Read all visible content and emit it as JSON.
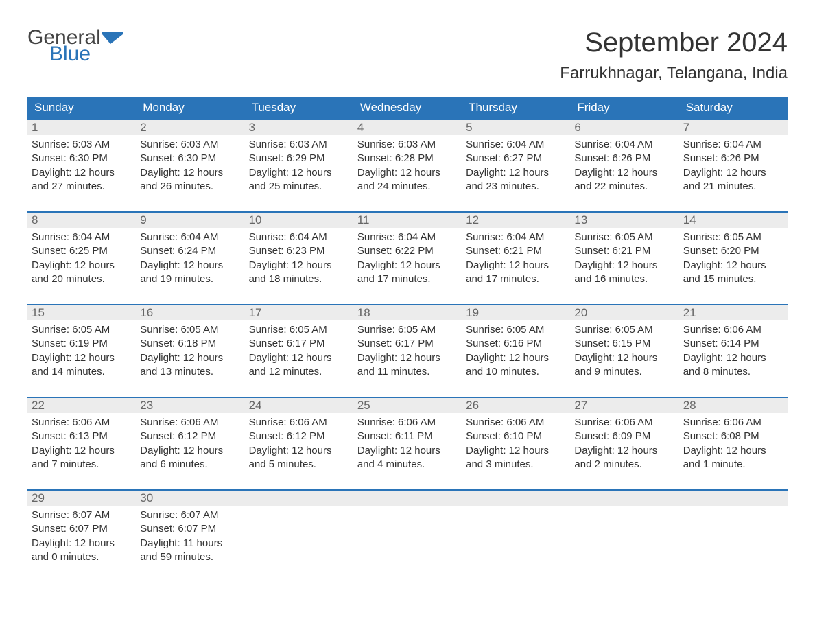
{
  "logo": {
    "top": "General",
    "bottom": "Blue"
  },
  "title": "September 2024",
  "location": "Farrukhnagar, Telangana, India",
  "colors": {
    "header_bg": "#2a74b8",
    "header_text": "#ffffff",
    "daynum_bg": "#ececec",
    "daynum_text": "#666666",
    "accent_border": "#2a74b8",
    "body_text": "#333333",
    "background": "#ffffff"
  },
  "weekdays": [
    "Sunday",
    "Monday",
    "Tuesday",
    "Wednesday",
    "Thursday",
    "Friday",
    "Saturday"
  ],
  "labels": {
    "sunrise": "Sunrise:",
    "sunset": "Sunset:",
    "daylight": "Daylight:"
  },
  "weeks": [
    [
      {
        "n": "1",
        "sunrise": "6:03 AM",
        "sunset": "6:30 PM",
        "daylight": "12 hours and 27 minutes."
      },
      {
        "n": "2",
        "sunrise": "6:03 AM",
        "sunset": "6:30 PM",
        "daylight": "12 hours and 26 minutes."
      },
      {
        "n": "3",
        "sunrise": "6:03 AM",
        "sunset": "6:29 PM",
        "daylight": "12 hours and 25 minutes."
      },
      {
        "n": "4",
        "sunrise": "6:03 AM",
        "sunset": "6:28 PM",
        "daylight": "12 hours and 24 minutes."
      },
      {
        "n": "5",
        "sunrise": "6:04 AM",
        "sunset": "6:27 PM",
        "daylight": "12 hours and 23 minutes."
      },
      {
        "n": "6",
        "sunrise": "6:04 AM",
        "sunset": "6:26 PM",
        "daylight": "12 hours and 22 minutes."
      },
      {
        "n": "7",
        "sunrise": "6:04 AM",
        "sunset": "6:26 PM",
        "daylight": "12 hours and 21 minutes."
      }
    ],
    [
      {
        "n": "8",
        "sunrise": "6:04 AM",
        "sunset": "6:25 PM",
        "daylight": "12 hours and 20 minutes."
      },
      {
        "n": "9",
        "sunrise": "6:04 AM",
        "sunset": "6:24 PM",
        "daylight": "12 hours and 19 minutes."
      },
      {
        "n": "10",
        "sunrise": "6:04 AM",
        "sunset": "6:23 PM",
        "daylight": "12 hours and 18 minutes."
      },
      {
        "n": "11",
        "sunrise": "6:04 AM",
        "sunset": "6:22 PM",
        "daylight": "12 hours and 17 minutes."
      },
      {
        "n": "12",
        "sunrise": "6:04 AM",
        "sunset": "6:21 PM",
        "daylight": "12 hours and 17 minutes."
      },
      {
        "n": "13",
        "sunrise": "6:05 AM",
        "sunset": "6:21 PM",
        "daylight": "12 hours and 16 minutes."
      },
      {
        "n": "14",
        "sunrise": "6:05 AM",
        "sunset": "6:20 PM",
        "daylight": "12 hours and 15 minutes."
      }
    ],
    [
      {
        "n": "15",
        "sunrise": "6:05 AM",
        "sunset": "6:19 PM",
        "daylight": "12 hours and 14 minutes."
      },
      {
        "n": "16",
        "sunrise": "6:05 AM",
        "sunset": "6:18 PM",
        "daylight": "12 hours and 13 minutes."
      },
      {
        "n": "17",
        "sunrise": "6:05 AM",
        "sunset": "6:17 PM",
        "daylight": "12 hours and 12 minutes."
      },
      {
        "n": "18",
        "sunrise": "6:05 AM",
        "sunset": "6:17 PM",
        "daylight": "12 hours and 11 minutes."
      },
      {
        "n": "19",
        "sunrise": "6:05 AM",
        "sunset": "6:16 PM",
        "daylight": "12 hours and 10 minutes."
      },
      {
        "n": "20",
        "sunrise": "6:05 AM",
        "sunset": "6:15 PM",
        "daylight": "12 hours and 9 minutes."
      },
      {
        "n": "21",
        "sunrise": "6:06 AM",
        "sunset": "6:14 PM",
        "daylight": "12 hours and 8 minutes."
      }
    ],
    [
      {
        "n": "22",
        "sunrise": "6:06 AM",
        "sunset": "6:13 PM",
        "daylight": "12 hours and 7 minutes."
      },
      {
        "n": "23",
        "sunrise": "6:06 AM",
        "sunset": "6:12 PM",
        "daylight": "12 hours and 6 minutes."
      },
      {
        "n": "24",
        "sunrise": "6:06 AM",
        "sunset": "6:12 PM",
        "daylight": "12 hours and 5 minutes."
      },
      {
        "n": "25",
        "sunrise": "6:06 AM",
        "sunset": "6:11 PM",
        "daylight": "12 hours and 4 minutes."
      },
      {
        "n": "26",
        "sunrise": "6:06 AM",
        "sunset": "6:10 PM",
        "daylight": "12 hours and 3 minutes."
      },
      {
        "n": "27",
        "sunrise": "6:06 AM",
        "sunset": "6:09 PM",
        "daylight": "12 hours and 2 minutes."
      },
      {
        "n": "28",
        "sunrise": "6:06 AM",
        "sunset": "6:08 PM",
        "daylight": "12 hours and 1 minute."
      }
    ],
    [
      {
        "n": "29",
        "sunrise": "6:07 AM",
        "sunset": "6:07 PM",
        "daylight": "12 hours and 0 minutes."
      },
      {
        "n": "30",
        "sunrise": "6:07 AM",
        "sunset": "6:07 PM",
        "daylight": "11 hours and 59 minutes."
      },
      null,
      null,
      null,
      null,
      null
    ]
  ]
}
